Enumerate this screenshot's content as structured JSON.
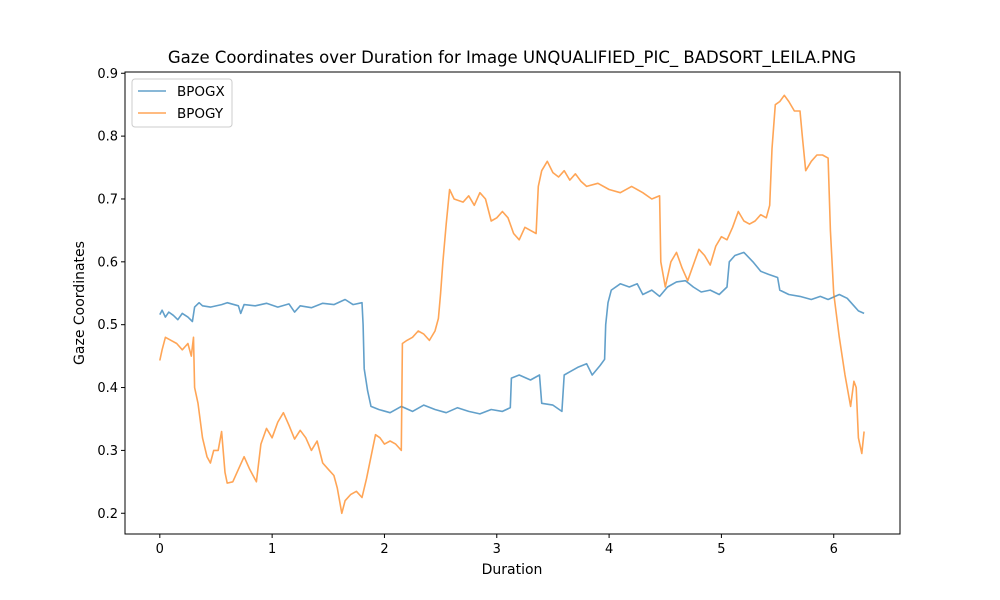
{
  "chart_data": {
    "type": "line",
    "title": "Gaze Coordinates over Duration for Image UNQUALIFIED_PIC_ BADSORT_LEILA.PNG",
    "xlabel": "Duration",
    "ylabel": "Gaze Coordinates",
    "xlim": [
      -0.31,
      6.59
    ],
    "ylim": [
      0.167,
      0.902
    ],
    "xticks": [
      0,
      1,
      2,
      3,
      4,
      5,
      6
    ],
    "yticks": [
      0.2,
      0.3,
      0.4,
      0.5,
      0.6,
      0.7,
      0.8,
      0.9
    ],
    "grid": false,
    "legend_position": "top-left",
    "series": [
      {
        "name": "BPOGX",
        "color": "#1f77b4",
        "points": [
          [
            0.0,
            0.516
          ],
          [
            0.02,
            0.523
          ],
          [
            0.05,
            0.512
          ],
          [
            0.08,
            0.52
          ],
          [
            0.12,
            0.515
          ],
          [
            0.16,
            0.508
          ],
          [
            0.2,
            0.518
          ],
          [
            0.25,
            0.512
          ],
          [
            0.29,
            0.505
          ],
          [
            0.31,
            0.528
          ],
          [
            0.35,
            0.535
          ],
          [
            0.38,
            0.53
          ],
          [
            0.45,
            0.528
          ],
          [
            0.55,
            0.532
          ],
          [
            0.6,
            0.535
          ],
          [
            0.7,
            0.53
          ],
          [
            0.72,
            0.518
          ],
          [
            0.75,
            0.532
          ],
          [
            0.85,
            0.53
          ],
          [
            0.95,
            0.534
          ],
          [
            1.05,
            0.528
          ],
          [
            1.15,
            0.533
          ],
          [
            1.2,
            0.52
          ],
          [
            1.25,
            0.53
          ],
          [
            1.35,
            0.527
          ],
          [
            1.45,
            0.534
          ],
          [
            1.55,
            0.532
          ],
          [
            1.65,
            0.54
          ],
          [
            1.72,
            0.532
          ],
          [
            1.8,
            0.535
          ],
          [
            1.81,
            0.5
          ],
          [
            1.82,
            0.43
          ],
          [
            1.85,
            0.395
          ],
          [
            1.88,
            0.37
          ],
          [
            1.95,
            0.365
          ],
          [
            2.05,
            0.36
          ],
          [
            2.15,
            0.37
          ],
          [
            2.25,
            0.362
          ],
          [
            2.35,
            0.372
          ],
          [
            2.45,
            0.365
          ],
          [
            2.55,
            0.36
          ],
          [
            2.65,
            0.368
          ],
          [
            2.75,
            0.362
          ],
          [
            2.85,
            0.358
          ],
          [
            2.95,
            0.365
          ],
          [
            3.05,
            0.362
          ],
          [
            3.12,
            0.368
          ],
          [
            3.13,
            0.415
          ],
          [
            3.2,
            0.42
          ],
          [
            3.3,
            0.412
          ],
          [
            3.38,
            0.42
          ],
          [
            3.4,
            0.375
          ],
          [
            3.5,
            0.372
          ],
          [
            3.58,
            0.362
          ],
          [
            3.6,
            0.42
          ],
          [
            3.65,
            0.425
          ],
          [
            3.72,
            0.432
          ],
          [
            3.8,
            0.438
          ],
          [
            3.85,
            0.42
          ],
          [
            3.92,
            0.435
          ],
          [
            3.96,
            0.445
          ],
          [
            3.97,
            0.5
          ],
          [
            3.99,
            0.535
          ],
          [
            4.02,
            0.555
          ],
          [
            4.1,
            0.565
          ],
          [
            4.18,
            0.56
          ],
          [
            4.25,
            0.565
          ],
          [
            4.3,
            0.548
          ],
          [
            4.38,
            0.555
          ],
          [
            4.45,
            0.545
          ],
          [
            4.52,
            0.56
          ],
          [
            4.6,
            0.568
          ],
          [
            4.68,
            0.57
          ],
          [
            4.75,
            0.56
          ],
          [
            4.82,
            0.552
          ],
          [
            4.9,
            0.555
          ],
          [
            4.98,
            0.548
          ],
          [
            5.05,
            0.56
          ],
          [
            5.07,
            0.6
          ],
          [
            5.12,
            0.61
          ],
          [
            5.2,
            0.615
          ],
          [
            5.28,
            0.6
          ],
          [
            5.35,
            0.585
          ],
          [
            5.42,
            0.58
          ],
          [
            5.5,
            0.575
          ],
          [
            5.52,
            0.555
          ],
          [
            5.6,
            0.548
          ],
          [
            5.7,
            0.545
          ],
          [
            5.8,
            0.54
          ],
          [
            5.88,
            0.545
          ],
          [
            5.95,
            0.54
          ],
          [
            6.05,
            0.548
          ],
          [
            6.12,
            0.542
          ],
          [
            6.18,
            0.53
          ],
          [
            6.22,
            0.522
          ],
          [
            6.27,
            0.518
          ]
        ]
      },
      {
        "name": "BPOGY",
        "color": "#ff7f0e",
        "points": [
          [
            0.0,
            0.443
          ],
          [
            0.02,
            0.46
          ],
          [
            0.05,
            0.48
          ],
          [
            0.1,
            0.475
          ],
          [
            0.15,
            0.47
          ],
          [
            0.2,
            0.46
          ],
          [
            0.25,
            0.47
          ],
          [
            0.28,
            0.45
          ],
          [
            0.3,
            0.48
          ],
          [
            0.31,
            0.4
          ],
          [
            0.34,
            0.375
          ],
          [
            0.38,
            0.32
          ],
          [
            0.42,
            0.29
          ],
          [
            0.45,
            0.28
          ],
          [
            0.48,
            0.3
          ],
          [
            0.52,
            0.3
          ],
          [
            0.55,
            0.33
          ],
          [
            0.58,
            0.265
          ],
          [
            0.6,
            0.248
          ],
          [
            0.65,
            0.25
          ],
          [
            0.7,
            0.27
          ],
          [
            0.75,
            0.29
          ],
          [
            0.8,
            0.27
          ],
          [
            0.83,
            0.26
          ],
          [
            0.86,
            0.25
          ],
          [
            0.9,
            0.31
          ],
          [
            0.95,
            0.335
          ],
          [
            1.0,
            0.32
          ],
          [
            1.05,
            0.345
          ],
          [
            1.1,
            0.36
          ],
          [
            1.15,
            0.34
          ],
          [
            1.2,
            0.318
          ],
          [
            1.25,
            0.332
          ],
          [
            1.3,
            0.32
          ],
          [
            1.35,
            0.3
          ],
          [
            1.4,
            0.315
          ],
          [
            1.45,
            0.28
          ],
          [
            1.5,
            0.27
          ],
          [
            1.55,
            0.26
          ],
          [
            1.58,
            0.24
          ],
          [
            1.62,
            0.2
          ],
          [
            1.65,
            0.22
          ],
          [
            1.7,
            0.23
          ],
          [
            1.75,
            0.235
          ],
          [
            1.8,
            0.225
          ],
          [
            1.84,
            0.255
          ],
          [
            1.88,
            0.29
          ],
          [
            1.92,
            0.325
          ],
          [
            1.96,
            0.32
          ],
          [
            2.0,
            0.31
          ],
          [
            2.05,
            0.315
          ],
          [
            2.1,
            0.31
          ],
          [
            2.15,
            0.3
          ],
          [
            2.16,
            0.47
          ],
          [
            2.2,
            0.475
          ],
          [
            2.25,
            0.48
          ],
          [
            2.3,
            0.49
          ],
          [
            2.35,
            0.485
          ],
          [
            2.4,
            0.475
          ],
          [
            2.45,
            0.49
          ],
          [
            2.48,
            0.51
          ],
          [
            2.5,
            0.55
          ],
          [
            2.52,
            0.6
          ],
          [
            2.55,
            0.66
          ],
          [
            2.58,
            0.715
          ],
          [
            2.62,
            0.7
          ],
          [
            2.7,
            0.695
          ],
          [
            2.75,
            0.705
          ],
          [
            2.8,
            0.69
          ],
          [
            2.85,
            0.71
          ],
          [
            2.9,
            0.7
          ],
          [
            2.95,
            0.665
          ],
          [
            3.0,
            0.67
          ],
          [
            3.05,
            0.68
          ],
          [
            3.1,
            0.67
          ],
          [
            3.15,
            0.645
          ],
          [
            3.2,
            0.635
          ],
          [
            3.25,
            0.655
          ],
          [
            3.3,
            0.65
          ],
          [
            3.35,
            0.645
          ],
          [
            3.37,
            0.72
          ],
          [
            3.4,
            0.745
          ],
          [
            3.45,
            0.76
          ],
          [
            3.5,
            0.742
          ],
          [
            3.55,
            0.735
          ],
          [
            3.6,
            0.745
          ],
          [
            3.65,
            0.73
          ],
          [
            3.7,
            0.74
          ],
          [
            3.75,
            0.728
          ],
          [
            3.8,
            0.72
          ],
          [
            3.9,
            0.725
          ],
          [
            4.0,
            0.715
          ],
          [
            4.1,
            0.71
          ],
          [
            4.2,
            0.72
          ],
          [
            4.3,
            0.71
          ],
          [
            4.38,
            0.7
          ],
          [
            4.45,
            0.705
          ],
          [
            4.46,
            0.6
          ],
          [
            4.5,
            0.56
          ],
          [
            4.55,
            0.6
          ],
          [
            4.6,
            0.615
          ],
          [
            4.65,
            0.59
          ],
          [
            4.7,
            0.57
          ],
          [
            4.75,
            0.595
          ],
          [
            4.8,
            0.62
          ],
          [
            4.85,
            0.61
          ],
          [
            4.9,
            0.595
          ],
          [
            4.95,
            0.625
          ],
          [
            5.0,
            0.64
          ],
          [
            5.05,
            0.635
          ],
          [
            5.1,
            0.655
          ],
          [
            5.15,
            0.68
          ],
          [
            5.2,
            0.665
          ],
          [
            5.25,
            0.66
          ],
          [
            5.3,
            0.665
          ],
          [
            5.35,
            0.675
          ],
          [
            5.4,
            0.67
          ],
          [
            5.43,
            0.69
          ],
          [
            5.45,
            0.78
          ],
          [
            5.48,
            0.85
          ],
          [
            5.52,
            0.855
          ],
          [
            5.56,
            0.865
          ],
          [
            5.6,
            0.855
          ],
          [
            5.65,
            0.84
          ],
          [
            5.7,
            0.84
          ],
          [
            5.72,
            0.8
          ],
          [
            5.75,
            0.745
          ],
          [
            5.8,
            0.76
          ],
          [
            5.85,
            0.77
          ],
          [
            5.9,
            0.77
          ],
          [
            5.95,
            0.765
          ],
          [
            5.97,
            0.65
          ],
          [
            6.0,
            0.55
          ],
          [
            6.05,
            0.48
          ],
          [
            6.1,
            0.42
          ],
          [
            6.15,
            0.37
          ],
          [
            6.18,
            0.41
          ],
          [
            6.2,
            0.4
          ],
          [
            6.22,
            0.32
          ],
          [
            6.25,
            0.295
          ],
          [
            6.27,
            0.33
          ]
        ]
      }
    ]
  }
}
